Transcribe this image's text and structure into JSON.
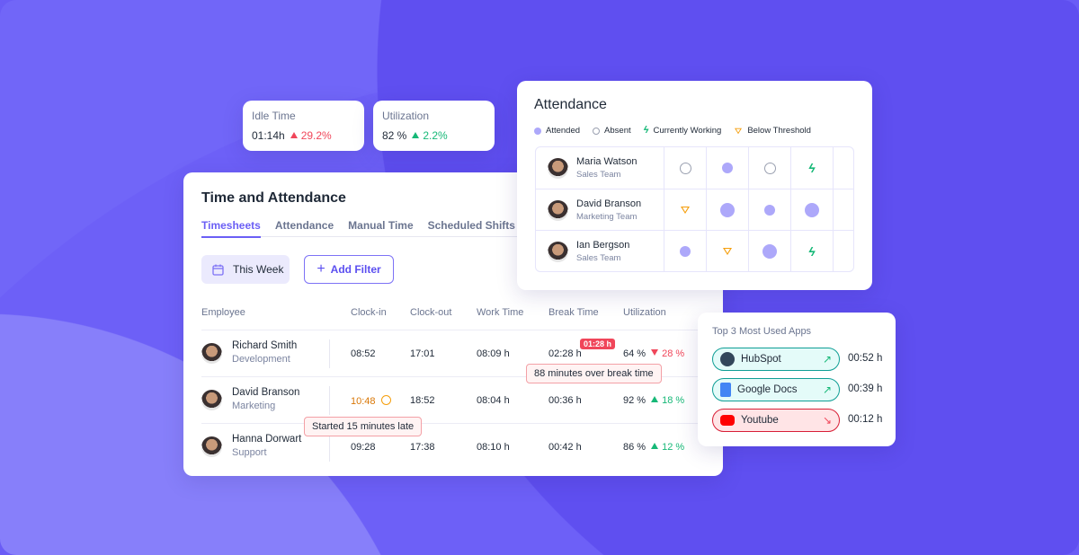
{
  "kpis": [
    {
      "title": "Idle Time",
      "value": "01:14h",
      "change": "29.2%",
      "direction": "up",
      "color": "#f0465a"
    },
    {
      "title": "Utilization",
      "value": "82 %",
      "change": "2.2%",
      "direction": "up",
      "color": "#16b877"
    }
  ],
  "main": {
    "title": "Time and Attendance",
    "tabs": [
      {
        "label": "Timesheets",
        "active": true
      },
      {
        "label": "Attendance"
      },
      {
        "label": "Manual Time"
      },
      {
        "label": "Scheduled Shifts"
      }
    ],
    "date_button": "This Week",
    "filter_button": "Add Filter",
    "columns": [
      "Employee",
      "Clock-in",
      "Clock-out",
      "Work Time",
      "Break Time",
      "Utilization"
    ],
    "rows": [
      {
        "name": "Richard Smith",
        "dept": "Development",
        "clock_in": "08:52",
        "clock_out": "17:01",
        "work": "08:09 h",
        "break": "02:28 h",
        "util": "64 %",
        "change": "28 %",
        "direction": "down",
        "break_badge": "01:28 h",
        "break_tip": "88 minutes over break time"
      },
      {
        "name": "David Branson",
        "dept": "Marketing",
        "clock_in": "10:48",
        "late": true,
        "clock_out": "18:52",
        "work": "08:04 h",
        "break": "00:36 h",
        "util": "92 %",
        "change": "18 %",
        "direction": "up",
        "late_tip": "Started 15 minutes late"
      },
      {
        "name": "Hanna Dorwart",
        "dept": "Support",
        "clock_in": "09:28",
        "clock_out": "17:38",
        "work": "08:10 h",
        "break": "00:42 h",
        "util": "86 %",
        "change": "12 %",
        "direction": "up"
      }
    ]
  },
  "attendance": {
    "title": "Attendance",
    "legend": [
      "Attended",
      "Absent",
      "Currently Working",
      "Below Threshold"
    ],
    "rows": [
      {
        "name": "Maria Watson",
        "team": "Sales Team",
        "days": [
          "absent",
          "attended",
          "absent",
          "working",
          ""
        ]
      },
      {
        "name": "David Branson",
        "team": "Marketing Team",
        "days": [
          "below",
          "attended-large",
          "attended",
          "attended-large",
          ""
        ]
      },
      {
        "name": "Ian Bergson",
        "team": "Sales Team",
        "days": [
          "attended",
          "below",
          "attended-large",
          "working",
          ""
        ]
      }
    ]
  },
  "apps": {
    "title": "Top 3 Most Used Apps",
    "items": [
      {
        "name": "HubSpot",
        "time": "00:52 h",
        "trend": "up",
        "icon": "hubspot-icon"
      },
      {
        "name": "Google Docs",
        "time": "00:39 h",
        "trend": "up",
        "icon": "google-docs-icon"
      },
      {
        "name": "Youtube",
        "time": "00:12 h",
        "trend": "down",
        "icon": "youtube-icon"
      }
    ]
  },
  "colors": {
    "accent": "#6b5ff5",
    "good": "#16b877",
    "bad": "#f0465a",
    "warn": "#f59e0b",
    "attended": "#ada8fa"
  }
}
